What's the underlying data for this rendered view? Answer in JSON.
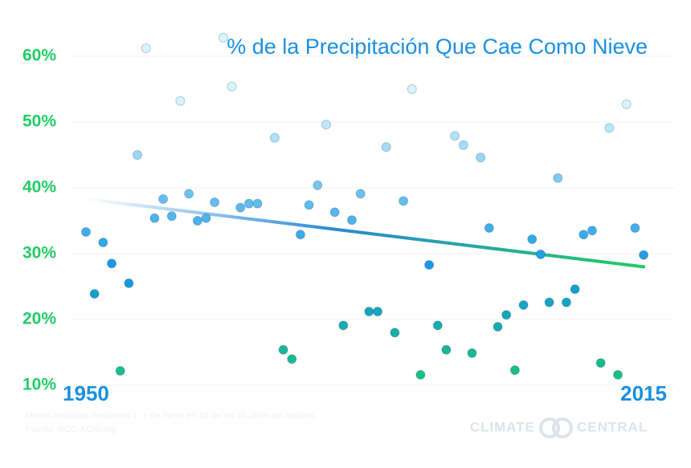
{
  "chart_data": {
    "type": "scatter",
    "title": "% de la Precipitación Que Cae Como Nieve",
    "x": [
      1950,
      1951,
      1952,
      1953,
      1954,
      1955,
      1956,
      1957,
      1958,
      1959,
      1960,
      1961,
      1962,
      1963,
      1964,
      1965,
      1966,
      1967,
      1968,
      1969,
      1970,
      1971,
      1972,
      1973,
      1974,
      1975,
      1976,
      1977,
      1978,
      1979,
      1980,
      1981,
      1982,
      1983,
      1984,
      1985,
      1986,
      1987,
      1988,
      1989,
      1990,
      1991,
      1992,
      1993,
      1994,
      1995,
      1996,
      1997,
      1998,
      1999,
      2000,
      2001,
      2002,
      2003,
      2004,
      2005,
      2006,
      2007,
      2008,
      2009,
      2010,
      2011,
      2012,
      2013,
      2014,
      2015
    ],
    "values": [
      33.3,
      23.9,
      31.7,
      28.5,
      12.2,
      25.5,
      45.0,
      61.2,
      35.4,
      38.3,
      35.7,
      53.2,
      39.1,
      35.0,
      35.4,
      37.8,
      62.8,
      55.4,
      37.0,
      37.6,
      37.6,
      null,
      47.6,
      15.4,
      14.0,
      32.9,
      37.4,
      40.4,
      49.6,
      36.3,
      19.1,
      35.1,
      39.1,
      21.2,
      21.2,
      46.2,
      18.0,
      38.0,
      55.0,
      11.6,
      28.3,
      19.1,
      15.4,
      47.9,
      46.5,
      14.9,
      44.6,
      33.9,
      18.9,
      20.7,
      12.3,
      22.2,
      32.2,
      29.9,
      22.6,
      41.5,
      22.6,
      24.6,
      32.9,
      33.5,
      13.4,
      49.1,
      11.6,
      52.7,
      33.9,
      29.8
    ],
    "trend": {
      "x": [
        1950,
        2015
      ],
      "values": [
        38.3,
        28.0
      ]
    },
    "xlim": [
      1948,
      2017
    ],
    "xticks": [
      1950,
      2015
    ],
    "ylim": [
      8,
      64
    ],
    "yticks": [
      {
        "value": 10,
        "label": "10%"
      },
      {
        "value": 20,
        "label": "20%"
      },
      {
        "value": 30,
        "label": "30%"
      },
      {
        "value": 40,
        "label": "40%"
      },
      {
        "value": 50,
        "label": "50%"
      },
      {
        "value": 60,
        "label": "60%"
      }
    ],
    "grid": true,
    "footnote": [
      "Meses incluidos recibieron 1\" + de nieve en 10 de los 65 años del análisis",
      "Fuente: RCC-ACIS.org"
    ],
    "brand": [
      "CLIMATE",
      "CENTRAL"
    ]
  }
}
